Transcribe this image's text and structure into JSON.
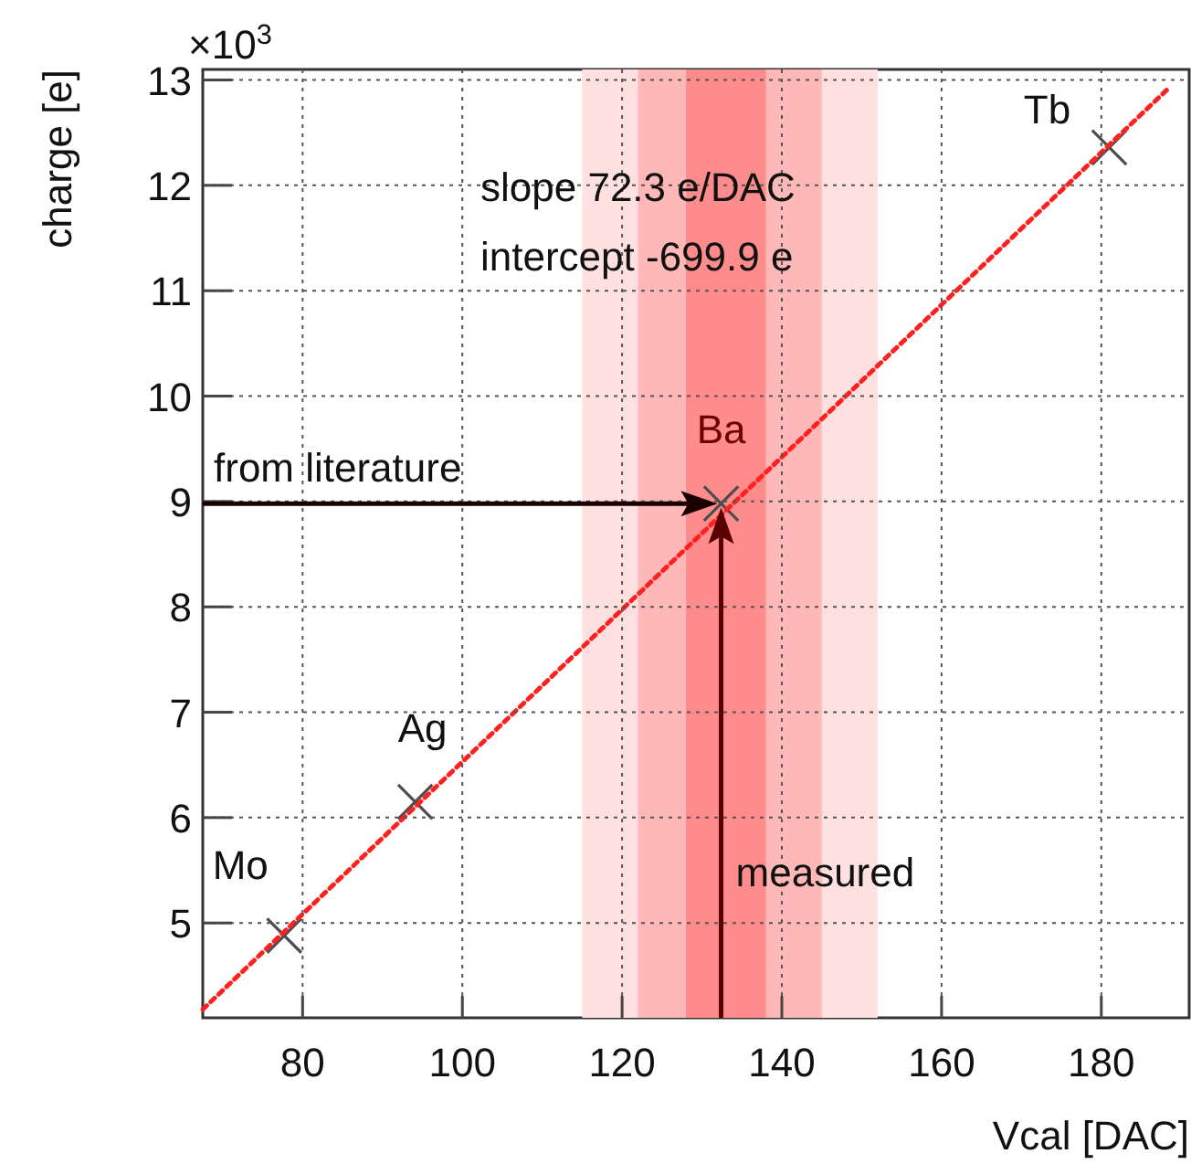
{
  "chart_data": {
    "type": "scatter",
    "xlabel": "Vcal [DAC]",
    "ylabel": "charge [e]",
    "xlim": [
      67.5,
      191
    ],
    "xticks": [
      80,
      100,
      120,
      140,
      160,
      180
    ],
    "ylim": [
      4.1,
      13.1
    ],
    "yticks": [
      5,
      6,
      7,
      8,
      9,
      10,
      11,
      12,
      13
    ],
    "grid": true,
    "marker": "cross",
    "line_style": "dotted",
    "series": [
      {
        "name": "Mo",
        "type": "scatter",
        "x": [
          77.7
        ],
        "values": [
          4.88
        ],
        "color": "#4d4d4d"
      },
      {
        "name": "Ag",
        "type": "scatter",
        "x": [
          94.1
        ],
        "values": [
          6.15
        ],
        "color": "#4d4d4d"
      },
      {
        "name": "Ba",
        "type": "scatter",
        "x": [
          132.4
        ],
        "values": [
          8.98
        ],
        "color": "#4d4d4d"
      },
      {
        "name": "Tb",
        "type": "scatter",
        "x": [
          181
        ],
        "values": [
          12.36
        ],
        "color": "#4d4d4d"
      },
      {
        "type": "line",
        "x": [
          67.5,
          188.4
        ],
        "values": [
          4.18,
          12.92
        ],
        "color": "#ff2020",
        "marker": "none"
      }
    ],
    "bands": [
      {
        "axis": "x",
        "from": 115,
        "to": 152,
        "color": "#ffe0e0"
      },
      {
        "axis": "x",
        "from": 122,
        "to": 145,
        "color": "#ffb8b8"
      },
      {
        "axis": "x",
        "from": 128,
        "to": 138,
        "color": "#ff8c8c"
      }
    ],
    "annotations": [
      "×10$^{3}$",
      "slope 72.3 e/DAC",
      "intercept -699.9 e",
      "from literature",
      "measured"
    ]
  }
}
